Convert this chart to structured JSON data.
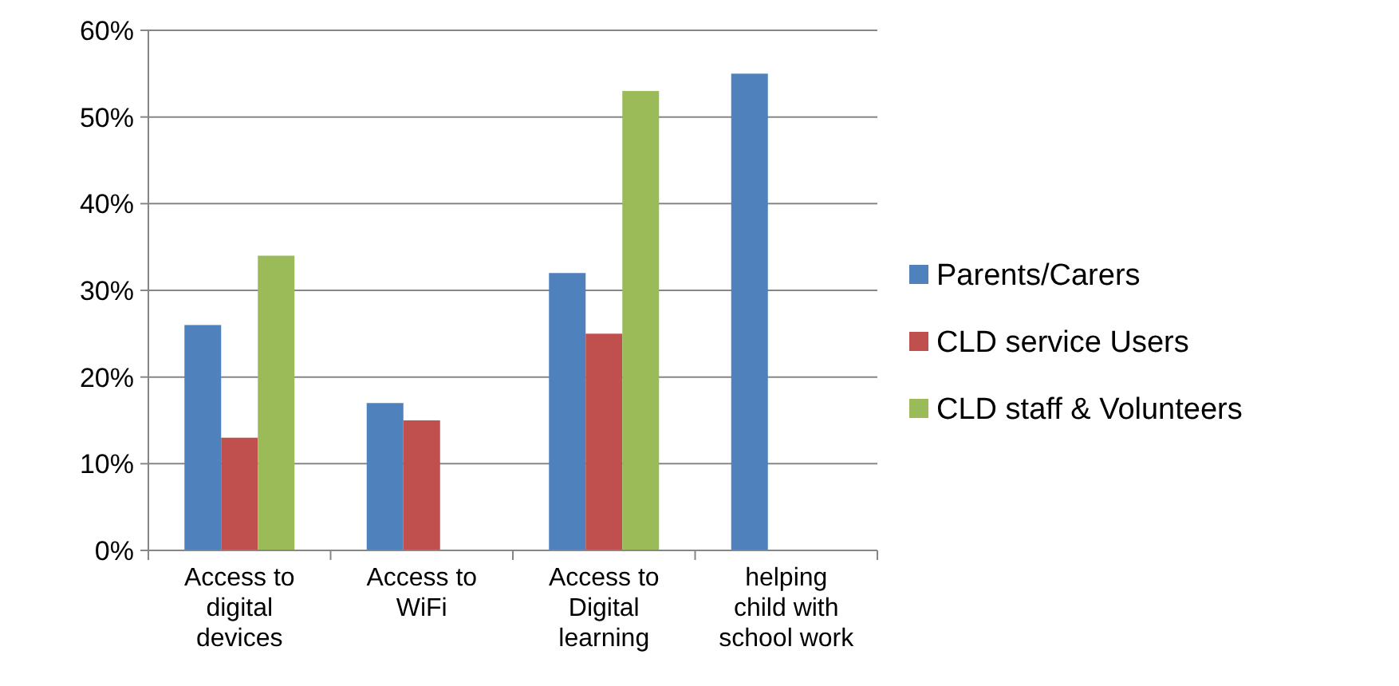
{
  "chart_data": {
    "type": "bar",
    "categories": [
      "Access to digital devices",
      "Access to WiFi",
      "Access to Digital learning",
      "helping child with school work"
    ],
    "series": [
      {
        "name": "Parents/Carers",
        "color": "#4f81bd",
        "values": [
          26,
          17,
          32,
          55
        ]
      },
      {
        "name": "CLD service Users",
        "color": "#c0504d",
        "values": [
          13,
          15,
          25,
          null
        ]
      },
      {
        "name": "CLD staff & Volunteers",
        "color": "#9bbb59",
        "values": [
          34,
          null,
          53,
          null
        ]
      }
    ],
    "ylim": [
      0,
      60
    ],
    "yticks": [
      {
        "value": 0,
        "label": "0%"
      },
      {
        "value": 10,
        "label": "10%"
      },
      {
        "value": 20,
        "label": "20%"
      },
      {
        "value": 30,
        "label": "30%"
      },
      {
        "value": 40,
        "label": "40%"
      },
      {
        "value": 50,
        "label": "50%"
      },
      {
        "value": 60,
        "label": "60%"
      }
    ],
    "grid": "y",
    "legend": "right"
  }
}
